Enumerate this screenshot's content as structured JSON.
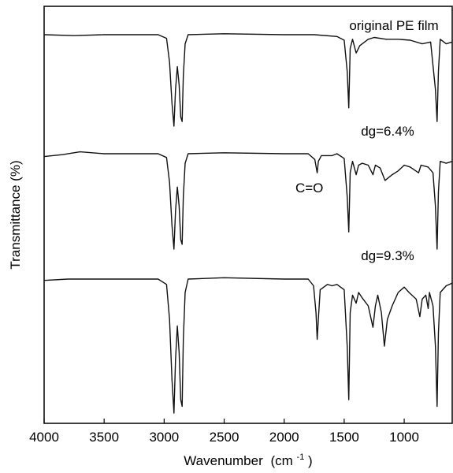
{
  "chart_data": {
    "type": "line",
    "title": "",
    "xlabel": "Wavenumber",
    "xlabel_unit_base": "(cm",
    "xlabel_unit_sup": "-1",
    "xlabel_unit_end": ")",
    "ylabel": "Transmittance (%)",
    "xlim": [
      4000,
      600
    ],
    "x_reversed": true,
    "x_ticks": [
      4000,
      3500,
      3000,
      2500,
      2000,
      1500,
      1000
    ],
    "y_ticks_shown": false,
    "grid": false,
    "legend": "none",
    "line_color": "#111111",
    "series": [
      {
        "label": "original PE film",
        "points": [
          [
            4000,
            0.0
          ],
          [
            3750,
            -0.01
          ],
          [
            3500,
            0.0
          ],
          [
            3250,
            0.0
          ],
          [
            3050,
            0.0
          ],
          [
            2980,
            -0.04
          ],
          [
            2955,
            -0.3
          ],
          [
            2935,
            -0.75
          ],
          [
            2918,
            -1.0
          ],
          [
            2905,
            -0.6
          ],
          [
            2890,
            -0.35
          ],
          [
            2875,
            -0.55
          ],
          [
            2862,
            -0.9
          ],
          [
            2850,
            -0.95
          ],
          [
            2840,
            -0.45
          ],
          [
            2825,
            -0.1
          ],
          [
            2800,
            0.0
          ],
          [
            2500,
            0.01
          ],
          [
            2000,
            0.0
          ],
          [
            1750,
            0.0
          ],
          [
            1560,
            -0.02
          ],
          [
            1500,
            -0.06
          ],
          [
            1475,
            -0.4
          ],
          [
            1462,
            -0.8
          ],
          [
            1450,
            -0.15
          ],
          [
            1430,
            -0.05
          ],
          [
            1400,
            -0.2
          ],
          [
            1370,
            -0.12
          ],
          [
            1300,
            -0.05
          ],
          [
            1250,
            -0.03
          ],
          [
            1150,
            -0.05
          ],
          [
            1050,
            -0.05
          ],
          [
            950,
            -0.06
          ],
          [
            850,
            -0.1
          ],
          [
            780,
            -0.08
          ],
          [
            740,
            -0.6
          ],
          [
            726,
            -0.95
          ],
          [
            715,
            -0.4
          ],
          [
            700,
            -0.05
          ],
          [
            650,
            -0.1
          ],
          [
            600,
            -0.08
          ]
        ]
      },
      {
        "label": "dg=6.4%",
        "points": [
          [
            4000,
            -0.03
          ],
          [
            3850,
            -0.01
          ],
          [
            3700,
            0.02
          ],
          [
            3500,
            0.0
          ],
          [
            3250,
            0.0
          ],
          [
            3050,
            0.0
          ],
          [
            2980,
            -0.04
          ],
          [
            2955,
            -0.3
          ],
          [
            2935,
            -0.75
          ],
          [
            2918,
            -1.0
          ],
          [
            2905,
            -0.6
          ],
          [
            2890,
            -0.35
          ],
          [
            2875,
            -0.55
          ],
          [
            2862,
            -0.9
          ],
          [
            2850,
            -0.95
          ],
          [
            2840,
            -0.45
          ],
          [
            2825,
            -0.1
          ],
          [
            2800,
            0.0
          ],
          [
            2500,
            0.01
          ],
          [
            2000,
            0.0
          ],
          [
            1800,
            0.0
          ],
          [
            1745,
            -0.06
          ],
          [
            1725,
            -0.2
          ],
          [
            1715,
            -0.08
          ],
          [
            1690,
            -0.02
          ],
          [
            1600,
            -0.02
          ],
          [
            1560,
            0.0
          ],
          [
            1500,
            -0.05
          ],
          [
            1475,
            -0.45
          ],
          [
            1462,
            -0.82
          ],
          [
            1450,
            -0.2
          ],
          [
            1430,
            -0.08
          ],
          [
            1400,
            -0.22
          ],
          [
            1380,
            -0.12
          ],
          [
            1350,
            -0.1
          ],
          [
            1300,
            -0.12
          ],
          [
            1260,
            -0.22
          ],
          [
            1240,
            -0.12
          ],
          [
            1200,
            -0.15
          ],
          [
            1160,
            -0.28
          ],
          [
            1100,
            -0.22
          ],
          [
            1050,
            -0.18
          ],
          [
            1000,
            -0.12
          ],
          [
            950,
            -0.14
          ],
          [
            880,
            -0.2
          ],
          [
            860,
            -0.12
          ],
          [
            800,
            -0.14
          ],
          [
            760,
            -0.2
          ],
          [
            740,
            -0.55
          ],
          [
            726,
            -1.0
          ],
          [
            715,
            -0.4
          ],
          [
            700,
            -0.08
          ],
          [
            650,
            -0.1
          ],
          [
            600,
            -0.08
          ]
        ]
      },
      {
        "label": "dg=9.3%",
        "points": [
          [
            4000,
            -0.01
          ],
          [
            3800,
            0.0
          ],
          [
            3500,
            0.0
          ],
          [
            3250,
            0.0
          ],
          [
            3050,
            0.0
          ],
          [
            2980,
            -0.04
          ],
          [
            2955,
            -0.3
          ],
          [
            2935,
            -0.75
          ],
          [
            2918,
            -1.0
          ],
          [
            2905,
            -0.6
          ],
          [
            2890,
            -0.35
          ],
          [
            2875,
            -0.55
          ],
          [
            2862,
            -0.9
          ],
          [
            2850,
            -0.95
          ],
          [
            2840,
            -0.45
          ],
          [
            2825,
            -0.1
          ],
          [
            2800,
            0.0
          ],
          [
            2500,
            0.01
          ],
          [
            2000,
            0.0
          ],
          [
            1800,
            0.0
          ],
          [
            1755,
            -0.05
          ],
          [
            1735,
            -0.25
          ],
          [
            1725,
            -0.45
          ],
          [
            1715,
            -0.3
          ],
          [
            1700,
            -0.08
          ],
          [
            1640,
            -0.04
          ],
          [
            1600,
            -0.05
          ],
          [
            1560,
            -0.04
          ],
          [
            1500,
            -0.08
          ],
          [
            1475,
            -0.5
          ],
          [
            1462,
            -0.9
          ],
          [
            1450,
            -0.25
          ],
          [
            1430,
            -0.12
          ],
          [
            1400,
            -0.18
          ],
          [
            1380,
            -0.1
          ],
          [
            1350,
            -0.14
          ],
          [
            1300,
            -0.2
          ],
          [
            1260,
            -0.36
          ],
          [
            1240,
            -0.2
          ],
          [
            1220,
            -0.12
          ],
          [
            1190,
            -0.25
          ],
          [
            1165,
            -0.5
          ],
          [
            1140,
            -0.3
          ],
          [
            1100,
            -0.2
          ],
          [
            1050,
            -0.1
          ],
          [
            1000,
            -0.06
          ],
          [
            960,
            -0.1
          ],
          [
            900,
            -0.15
          ],
          [
            870,
            -0.28
          ],
          [
            850,
            -0.15
          ],
          [
            820,
            -0.12
          ],
          [
            800,
            -0.22
          ],
          [
            790,
            -0.1
          ],
          [
            760,
            -0.2
          ],
          [
            740,
            -0.5
          ],
          [
            726,
            -0.95
          ],
          [
            715,
            -0.4
          ],
          [
            700,
            -0.1
          ],
          [
            650,
            -0.05
          ],
          [
            600,
            -0.03
          ]
        ]
      }
    ],
    "annotations": [
      {
        "text": "C=O",
        "x": 1790,
        "series_index": 1
      }
    ]
  }
}
